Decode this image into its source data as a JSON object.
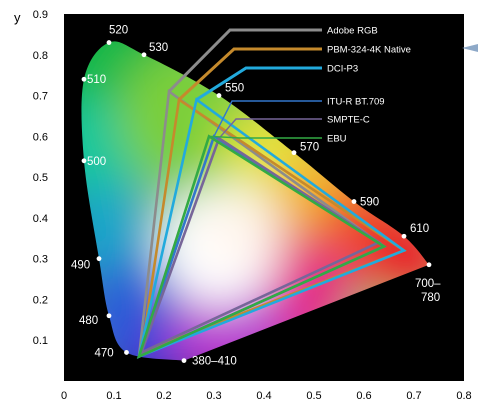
{
  "chart_data": {
    "type": "scatter",
    "ylabel": "y",
    "xlim": [
      0,
      0.8
    ],
    "ylim": [
      0,
      0.9
    ],
    "x_ticks": [
      0,
      0.1,
      0.2,
      0.3,
      0.4,
      0.5,
      0.6,
      0.7,
      0.8
    ],
    "y_ticks": [
      0.1,
      0.2,
      0.3,
      0.4,
      0.5,
      0.6,
      0.7,
      0.8,
      0.9
    ],
    "x_tick_labels": [
      "0",
      "0.1",
      "0.2",
      "0.3",
      "0.4",
      "0.5",
      "0.6",
      "0.7",
      "0.8"
    ],
    "y_tick_labels": [
      "0.1",
      "0.2",
      "0.3",
      "0.4",
      "0.5",
      "0.6",
      "0.7",
      "0.8",
      "0.9"
    ],
    "background": "#000000",
    "legend_position": "top-right",
    "spectral_locus": [
      {
        "label": "380–410",
        "x": 0.24,
        "y": 0.05
      },
      {
        "label": "470",
        "x": 0.125,
        "y": 0.07
      },
      {
        "label": "480",
        "x": 0.09,
        "y": 0.16
      },
      {
        "label": "490",
        "x": 0.07,
        "y": 0.3
      },
      {
        "label": "500",
        "x": 0.04,
        "y": 0.54
      },
      {
        "label": "510",
        "x": 0.04,
        "y": 0.74
      },
      {
        "label": "520",
        "x": 0.09,
        "y": 0.83
      },
      {
        "label": "530",
        "x": 0.16,
        "y": 0.8
      },
      {
        "label": "550",
        "x": 0.31,
        "y": 0.7
      },
      {
        "label": "570",
        "x": 0.46,
        "y": 0.56
      },
      {
        "label": "590",
        "x": 0.58,
        "y": 0.44
      },
      {
        "label": "610",
        "x": 0.68,
        "y": 0.355
      },
      {
        "label": "700–\n780",
        "x": 0.73,
        "y": 0.285
      }
    ],
    "series": [
      {
        "name": "Adobe RGB",
        "color": "#8c8c8c",
        "points": [
          [
            0.64,
            0.33
          ],
          [
            0.21,
            0.71
          ],
          [
            0.15,
            0.06
          ]
        ]
      },
      {
        "name": "PBM-324-4K  Native",
        "color": "#c58a2c",
        "points": [
          [
            0.68,
            0.32
          ],
          [
            0.23,
            0.69
          ],
          [
            0.155,
            0.07
          ]
        ]
      },
      {
        "name": "DCI-P3",
        "color": "#22aadd",
        "points": [
          [
            0.68,
            0.32
          ],
          [
            0.265,
            0.69
          ],
          [
            0.15,
            0.06
          ]
        ]
      },
      {
        "name": "ITU-R BT.709",
        "color": "#3377cc",
        "points": [
          [
            0.64,
            0.33
          ],
          [
            0.3,
            0.6
          ],
          [
            0.15,
            0.06
          ]
        ]
      },
      {
        "name": "SMPTE-C",
        "color": "#776699",
        "points": [
          [
            0.63,
            0.34
          ],
          [
            0.31,
            0.595
          ],
          [
            0.155,
            0.07
          ]
        ]
      },
      {
        "name": "EBU",
        "color": "#33aa44",
        "points": [
          [
            0.64,
            0.33
          ],
          [
            0.29,
            0.6
          ],
          [
            0.15,
            0.06
          ]
        ]
      }
    ]
  }
}
